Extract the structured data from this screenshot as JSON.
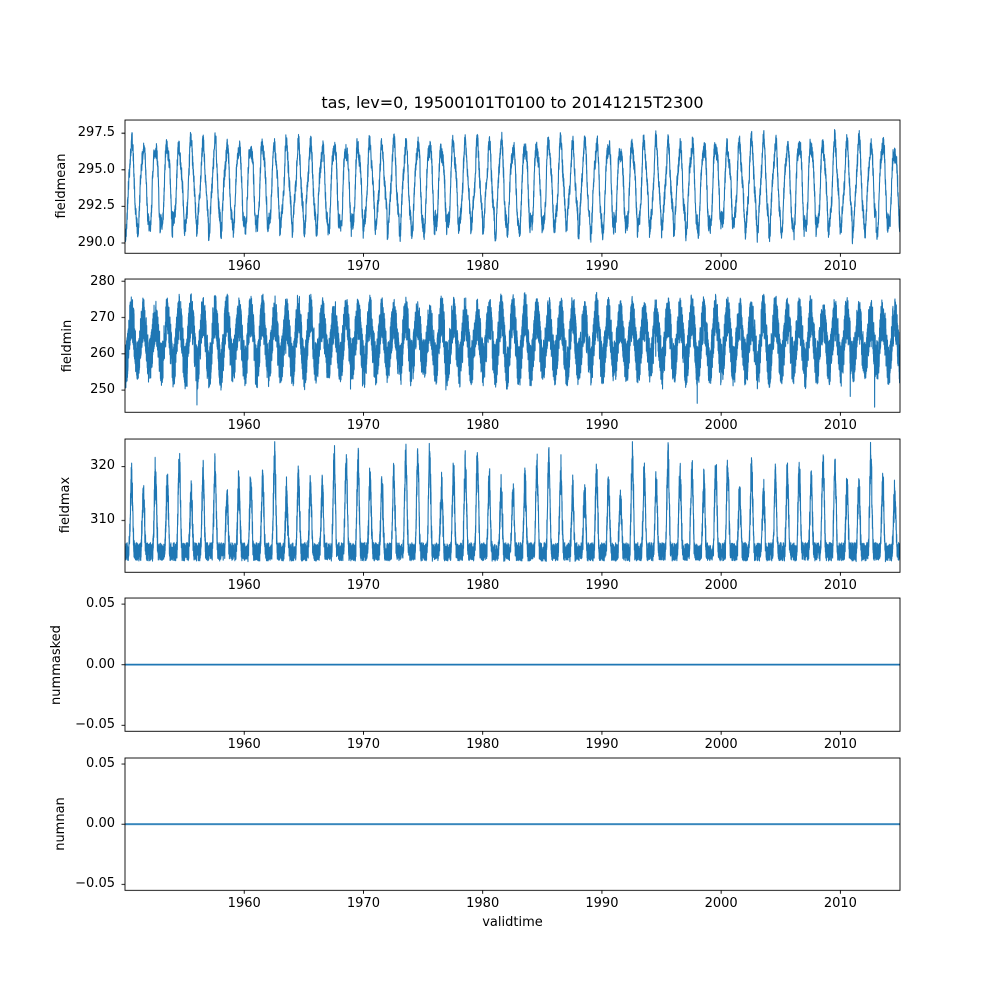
{
  "figure": {
    "title": "tas, lev=0, 19500101T0100 to 20141215T2300",
    "xlabel": "validtime",
    "line_color": "#1f77b4",
    "background": "#ffffff",
    "x_start": 1950.0,
    "x_end": 2015.0,
    "xtick_values": [
      1960,
      1970,
      1980,
      1990,
      2000,
      2010
    ],
    "xtick_labels": [
      "1960",
      "1970",
      "1980",
      "1990",
      "2000",
      "2010"
    ]
  },
  "chart_data": [
    {
      "type": "line",
      "name": "fieldmean",
      "ylabel": "fieldmean",
      "ylim": [
        289.3,
        298.4
      ],
      "ytick_values": [
        290.0,
        292.5,
        295.0,
        297.5
      ],
      "ytick_labels": [
        "290.0",
        "292.5",
        "295.0",
        "297.5"
      ],
      "series": {
        "kind": "seasonal-line",
        "description": "hourly field mean with annual cycle oscillating between ~290 and ~297.9",
        "samples_per_year": 96,
        "base": 293.85,
        "annual_amplitude": 2.8,
        "noise_amplitude": 1.1,
        "observed_min": 289.9,
        "observed_max": 297.9
      }
    },
    {
      "type": "line",
      "name": "fieldmin",
      "ylabel": "fieldmin",
      "ylim": [
        243.9,
        280.6
      ],
      "ytick_values": [
        250,
        260,
        270,
        280
      ],
      "ytick_labels": [
        "250",
        "260",
        "270",
        "280"
      ],
      "series": {
        "kind": "noisy-band-min",
        "description": "dense noisy band ~250-278 with annual modulation and downward spikes to ~245",
        "samples_per_year": 140,
        "base": 263.5,
        "annual_amplitude": 6.5,
        "noise_amplitude": 12.5,
        "spike_depth": 11,
        "observed_min": 245.0,
        "observed_max": 279.5
      }
    },
    {
      "type": "line",
      "name": "fieldmax",
      "ylabel": "fieldmax",
      "ylim": [
        300.4,
        325.1
      ],
      "ytick_values": [
        310,
        320
      ],
      "ytick_labels": [
        "310",
        "320"
      ],
      "series": {
        "kind": "noisy-band-max",
        "description": "dense noisy band ~302.5-306 with annual upward spikes reaching ~312-324.5",
        "samples_per_year": 140,
        "base": 304.2,
        "band_noise": 3.4,
        "annual_spike_max": 18,
        "observed_min": 302.5,
        "observed_max": 324.5
      }
    },
    {
      "type": "line",
      "name": "nummasked",
      "ylabel": "nummasked",
      "ylim": [
        -0.055,
        0.055
      ],
      "ytick_values": [
        -0.05,
        0.0,
        0.05
      ],
      "ytick_labels": [
        "−0.05",
        "0.00",
        "0.05"
      ],
      "series": {
        "kind": "constant",
        "description": "constant zero line",
        "value": 0.0
      }
    },
    {
      "type": "line",
      "name": "numnan",
      "ylabel": "numnan",
      "ylim": [
        -0.055,
        0.055
      ],
      "ytick_values": [
        -0.05,
        0.0,
        0.05
      ],
      "ytick_labels": [
        "−0.05",
        "0.00",
        "0.05"
      ],
      "series": {
        "kind": "constant",
        "description": "constant zero line",
        "value": 0.0
      }
    }
  ]
}
